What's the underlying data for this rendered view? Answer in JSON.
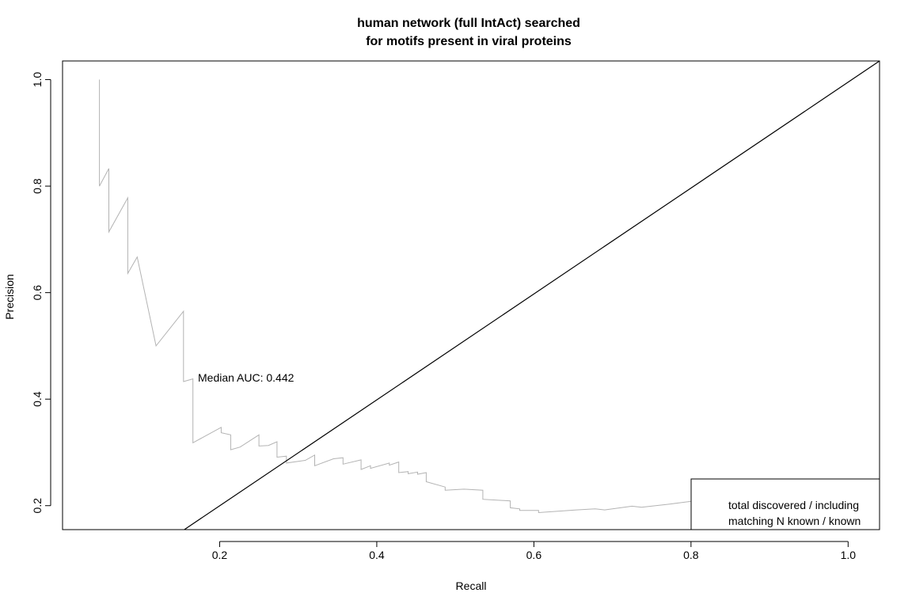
{
  "chart_data": {
    "type": "line",
    "title": [
      "human network (full IntAct) searched",
      "for motifs present in viral proteins"
    ],
    "xlabel": "Recall",
    "ylabel": "Precision",
    "xlim": [
      0.0,
      1.04
    ],
    "ylim": [
      0.155,
      1.035
    ],
    "xticks": [
      0.2,
      0.4,
      0.6,
      0.8,
      1.0
    ],
    "xtick_labels": [
      "0.2",
      "0.4",
      "0.6",
      "0.8",
      "1.0"
    ],
    "yticks": [
      0.2,
      0.4,
      0.6,
      0.8,
      1.0
    ],
    "ytick_labels": [
      "0.2",
      "0.4",
      "0.6",
      "0.8",
      "1.0"
    ],
    "grid": false,
    "series": [
      {
        "name": "precision-recall curve",
        "color": "#b3b3b3",
        "x": [
          0.047,
          0.047,
          0.059,
          0.059,
          0.083,
          0.083,
          0.095,
          0.119,
          0.154,
          0.154,
          0.166,
          0.166,
          0.202,
          0.202,
          0.214,
          0.214,
          0.226,
          0.25,
          0.25,
          0.262,
          0.273,
          0.273,
          0.285,
          0.285,
          0.309,
          0.321,
          0.321,
          0.345,
          0.357,
          0.357,
          0.38,
          0.38,
          0.392,
          0.392,
          0.416,
          0.416,
          0.428,
          0.428,
          0.44,
          0.44,
          0.452,
          0.452,
          0.463,
          0.463,
          0.487,
          0.487,
          0.511,
          0.535,
          0.535,
          0.57,
          0.57,
          0.582,
          0.582,
          0.606,
          0.606,
          0.654,
          0.678,
          0.69,
          0.725,
          0.737,
          0.773,
          0.81,
          0.845
        ],
        "y": [
          1.0,
          0.8,
          0.833,
          0.714,
          0.778,
          0.636,
          0.667,
          0.5,
          0.565,
          0.433,
          0.438,
          0.318,
          0.347,
          0.337,
          0.333,
          0.305,
          0.31,
          0.333,
          0.312,
          0.313,
          0.32,
          0.291,
          0.293,
          0.28,
          0.285,
          0.295,
          0.275,
          0.288,
          0.29,
          0.278,
          0.286,
          0.268,
          0.275,
          0.27,
          0.28,
          0.276,
          0.282,
          0.262,
          0.264,
          0.26,
          0.263,
          0.259,
          0.262,
          0.245,
          0.235,
          0.229,
          0.231,
          0.229,
          0.212,
          0.209,
          0.196,
          0.194,
          0.191,
          0.191,
          0.187,
          0.192,
          0.194,
          0.192,
          0.199,
          0.197,
          0.203,
          0.21,
          0.212
        ]
      },
      {
        "name": "reference line",
        "color": "#000000",
        "x": [
          0.155,
          1.04
        ],
        "y": [
          0.155,
          1.035
        ]
      }
    ],
    "annotations": [
      {
        "text": "Median AUC: 0.442",
        "x": 0.18,
        "y": 0.44
      }
    ],
    "legend": {
      "position": "bottom-right",
      "lines": [
        "total discovered / including",
        "matching N known / known"
      ]
    }
  }
}
